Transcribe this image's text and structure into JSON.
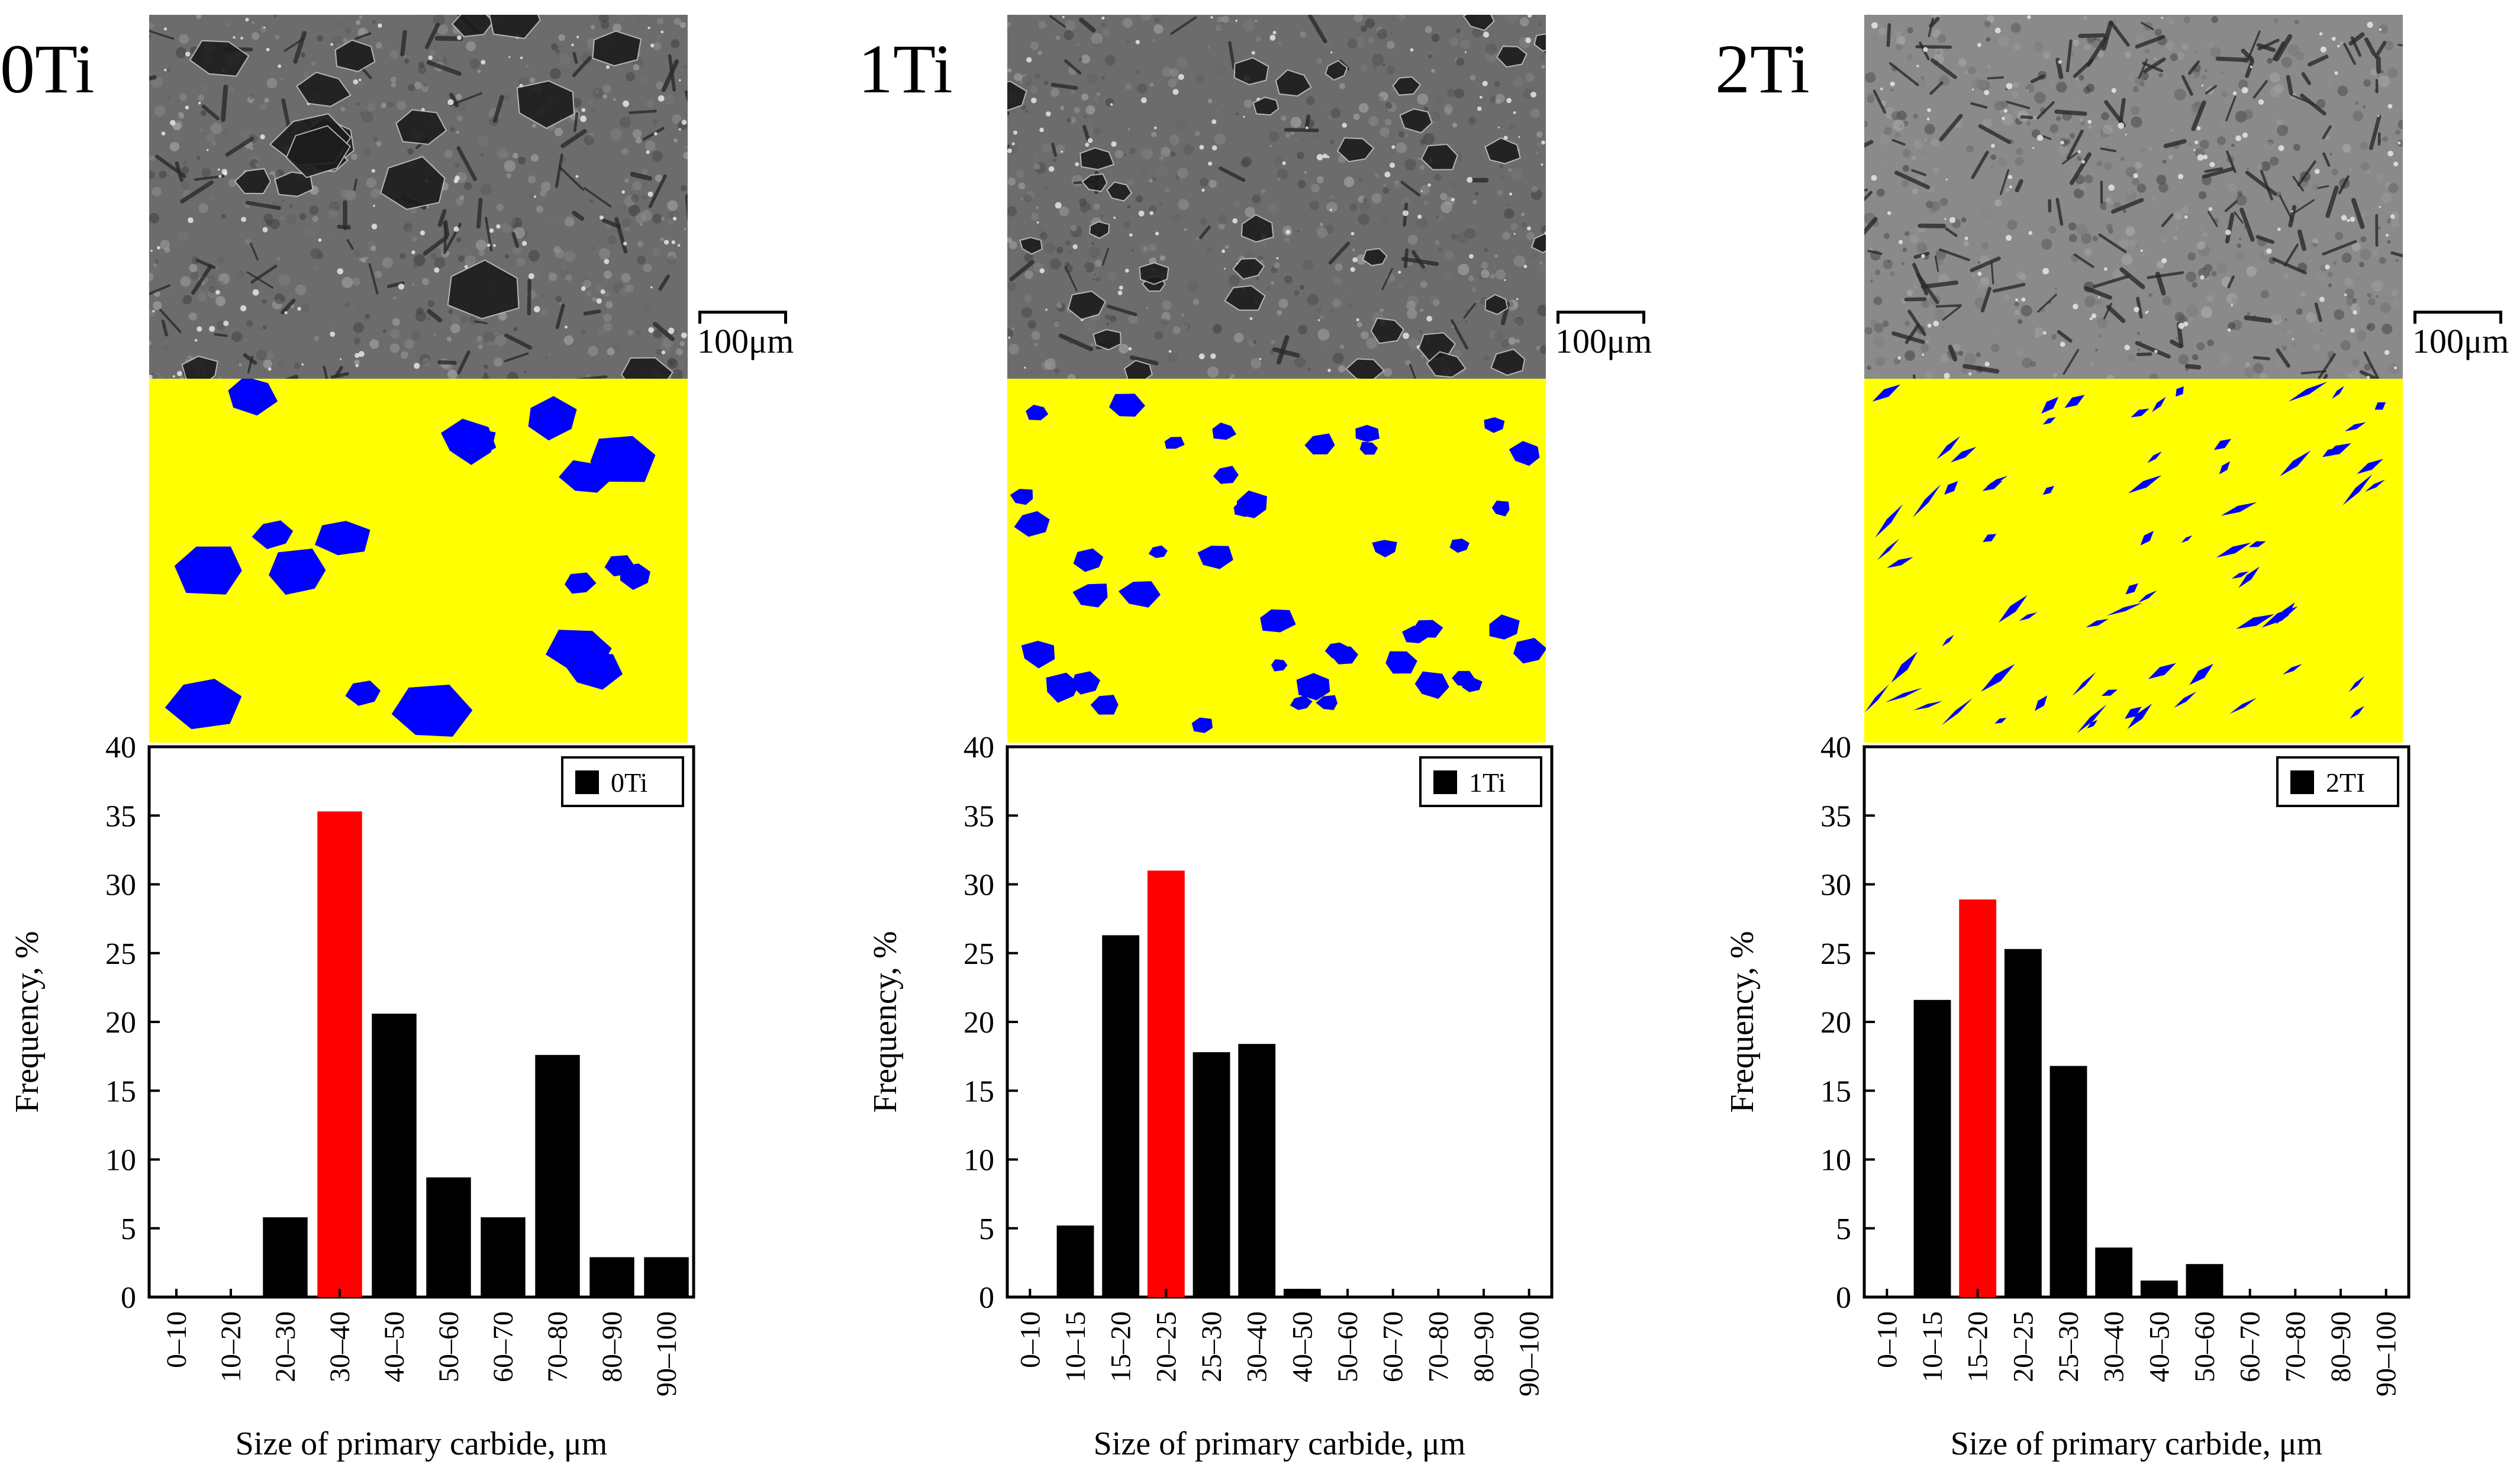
{
  "panels": [
    {
      "label": "0Ti",
      "scale_label": "100μm",
      "chart": {
        "type": "bar",
        "legend": "0Ti",
        "categories": [
          "0–10",
          "10–20",
          "20–30",
          "30–40",
          "40–50",
          "50–60",
          "60–70",
          "70–80",
          "80–90",
          "90–100"
        ],
        "values": [
          0,
          0,
          5.8,
          35.3,
          20.6,
          8.7,
          5.8,
          17.6,
          2.9,
          2.9
        ],
        "highlight_index": 3,
        "xlabel": "Size of primary carbide, μm",
        "ylabel": "Frequency, %",
        "ylim": [
          0,
          40
        ],
        "yticks": [
          "0",
          "5",
          "10",
          "15",
          "20",
          "25",
          "30",
          "35",
          "40"
        ]
      }
    },
    {
      "label": "1Ti",
      "scale_label": "100μm",
      "chart": {
        "type": "bar",
        "legend": "1Ti",
        "categories": [
          "0–10",
          "10–15",
          "15–20",
          "20–25",
          "25–30",
          "30–40",
          "40–50",
          "50–60",
          "60–70",
          "70–80",
          "80–90",
          "90–100"
        ],
        "values": [
          0,
          5.2,
          26.3,
          31.0,
          17.8,
          18.4,
          0.6,
          0,
          0,
          0,
          0,
          0
        ],
        "highlight_index": 3,
        "xlabel": "Size of primary carbide, μm",
        "ylabel": "Frequency, %",
        "ylim": [
          0,
          40
        ],
        "yticks": [
          "0",
          "5",
          "10",
          "15",
          "20",
          "25",
          "30",
          "35",
          "40"
        ]
      }
    },
    {
      "label": "2Ti",
      "scale_label": "100μm",
      "chart": {
        "type": "bar",
        "legend": "2TI",
        "categories": [
          "0–10",
          "10–15",
          "15–20",
          "20–25",
          "25–30",
          "30–40",
          "40–50",
          "50–60",
          "60–70",
          "70–80",
          "80–90",
          "90–100"
        ],
        "values": [
          0,
          21.6,
          28.9,
          25.3,
          16.8,
          3.6,
          1.2,
          2.4,
          0,
          0,
          0,
          0
        ],
        "highlight_index": 2,
        "xlabel": "Size of primary carbide, μm",
        "ylabel": "Frequency, %",
        "ylim": [
          0,
          40
        ],
        "yticks": [
          "0",
          "5",
          "10",
          "15",
          "20",
          "25",
          "30",
          "35",
          "40"
        ]
      }
    }
  ],
  "colors": {
    "bar": "#000000",
    "highlight": "#ff0000",
    "segmentation_background": "#ffff00",
    "carbide": "#0000ff"
  }
}
